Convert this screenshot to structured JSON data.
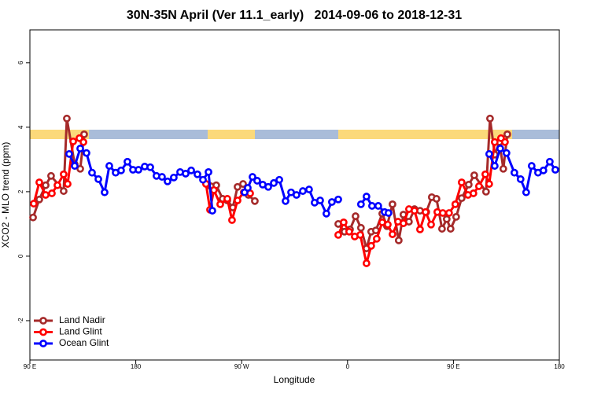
{
  "chart_data": {
    "type": "line",
    "title": "30N-35N April (Ver 11.1_early)   2014-09-06 to 2018-12-31",
    "x_label": "Longitude",
    "y_label": "XCO2 - MLO trend (ppm)",
    "xlim": [
      90,
      540
    ],
    "ylim": [
      -3.22,
      7.02
    ],
    "xticks": [
      {
        "value": 90,
        "label": "90 E"
      },
      {
        "value": 180,
        "label": "180"
      },
      {
        "value": 270,
        "label": "90 W"
      },
      {
        "value": 360,
        "label": "0"
      },
      {
        "value": 450,
        "label": "90 E"
      },
      {
        "value": 540,
        "label": "180"
      }
    ],
    "yticks": [
      -2,
      0,
      2,
      4,
      6
    ],
    "legend": "bottom-left",
    "series": [
      {
        "name": "Land Nadir",
        "color": "#a52a2a",
        "x": [
          92.7,
          98.0,
          103.4,
          108.0,
          118.7,
          121.4,
          128.1,
          132.8,
          136.1,
          null,
          243.8,
          248.4,
          253.8,
          257.8,
          262.5,
          266.5,
          271.2,
          275.8,
          281.2,
          null,
          352.1,
          357.4,
          362.1,
          366.8,
          371.4,
          376.1,
          380.1,
          384.1,
          389.5,
          393.5,
          398.2,
          403.5,
          407.5,
          412.2,
          416.9,
          421.6,
          426.9,
          431.6,
          435.6,
          440.3,
          444.3,
          447.6,
          452.3,
          457.0,
          463.0,
          467.7,
          477.7,
          481.1,
          485.1,
          489.1,
          492.4,
          495.8
        ],
        "values": [
          1.2,
          1.76,
          2.2,
          2.49,
          2.02,
          4.27,
          2.85,
          2.71,
          3.78,
          null,
          2.17,
          2.2,
          1.78,
          1.73,
          1.51,
          2.15,
          2.24,
          1.9,
          1.71,
          null,
          1.0,
          0.76,
          0.83,
          1.24,
          0.88,
          0.24,
          0.76,
          0.8,
          1.32,
          0.93,
          1.61,
          0.49,
          1.29,
          1.07,
          1.46,
          1.41,
          1.37,
          1.83,
          1.78,
          0.85,
          1.15,
          0.85,
          1.22,
          1.8,
          2.22,
          2.51,
          2.0,
          4.27,
          3.15,
          3.54,
          2.71,
          3.78
        ]
      },
      {
        "name": "Land Glint",
        "color": "#ff0000",
        "x": [
          93.3,
          98.0,
          103.4,
          108.7,
          113.4,
          118.7,
          122.1,
          126.8,
          132.1,
          135.5,
          null,
          239.7,
          243.1,
          246.4,
          251.8,
          257.8,
          261.8,
          266.5,
          271.8,
          277.2,
          null,
          352.1,
          356.7,
          361.4,
          366.1,
          370.8,
          376.1,
          380.1,
          384.8,
          389.5,
          394.2,
          398.2,
          402.9,
          407.5,
          412.2,
          416.9,
          421.6,
          426.3,
          431.0,
          436.3,
          441.0,
          446.3,
          451.6,
          457.0,
          462.4,
          467.0,
          471.7,
          477.1,
          480.4,
          485.1,
          490.4,
          493.8
        ],
        "values": [
          1.63,
          2.29,
          1.9,
          1.95,
          2.2,
          2.54,
          2.24,
          3.56,
          3.66,
          3.54,
          null,
          2.24,
          1.44,
          2.05,
          1.61,
          1.78,
          1.12,
          1.73,
          1.98,
          1.95,
          null,
          0.66,
          1.05,
          0.76,
          0.61,
          0.66,
          -0.22,
          0.32,
          0.54,
          1.05,
          0.98,
          0.68,
          1.07,
          1.02,
          1.46,
          1.41,
          0.83,
          1.37,
          0.98,
          1.37,
          1.34,
          1.34,
          1.61,
          2.29,
          1.9,
          1.95,
          2.17,
          2.54,
          2.24,
          3.54,
          3.66,
          3.54
        ]
      },
      {
        "name": "Ocean Glint",
        "color": "#0000ff",
        "x": [
          123.4,
          128.1,
          132.8,
          138.1,
          142.8,
          148.2,
          153.5,
          157.5,
          162.9,
          167.5,
          172.9,
          177.6,
          182.3,
          187.6,
          192.3,
          197.6,
          202.3,
          207.0,
          212.3,
          217.7,
          222.4,
          227.1,
          232.4,
          237.1,
          241.8,
          245.1,
          null,
          272.5,
          275.2,
          279.2,
          283.2,
          287.9,
          292.6,
          297.3,
          302.0,
          307.3,
          312.0,
          316.6,
          322.0,
          327.3,
          332.0,
          336.7,
          342.0,
          346.7,
          352.1,
          null,
          371.4,
          376.1,
          380.8,
          386.1,
          391.5,
          394.8,
          null,
          480.4,
          485.1,
          489.8,
          495.1,
          501.8,
          507.1,
          511.8,
          516.5,
          521.9,
          526.5,
          531.9,
          536.6
        ],
        "values": [
          3.17,
          2.8,
          3.34,
          3.2,
          2.59,
          2.39,
          1.98,
          2.8,
          2.59,
          2.66,
          2.93,
          2.68,
          2.68,
          2.78,
          2.76,
          2.49,
          2.46,
          2.32,
          2.44,
          2.61,
          2.56,
          2.66,
          2.54,
          2.37,
          2.61,
          1.41,
          null,
          1.98,
          2.12,
          2.46,
          2.34,
          2.22,
          2.15,
          2.27,
          2.37,
          1.71,
          1.98,
          1.9,
          2.02,
          2.07,
          1.66,
          1.73,
          1.32,
          1.68,
          1.76,
          null,
          1.61,
          1.85,
          1.56,
          1.56,
          1.37,
          1.34,
          null,
          3.17,
          2.8,
          3.34,
          3.2,
          2.59,
          2.39,
          1.98,
          2.8,
          2.59,
          2.66,
          2.93,
          2.68
        ]
      }
    ]
  }
}
